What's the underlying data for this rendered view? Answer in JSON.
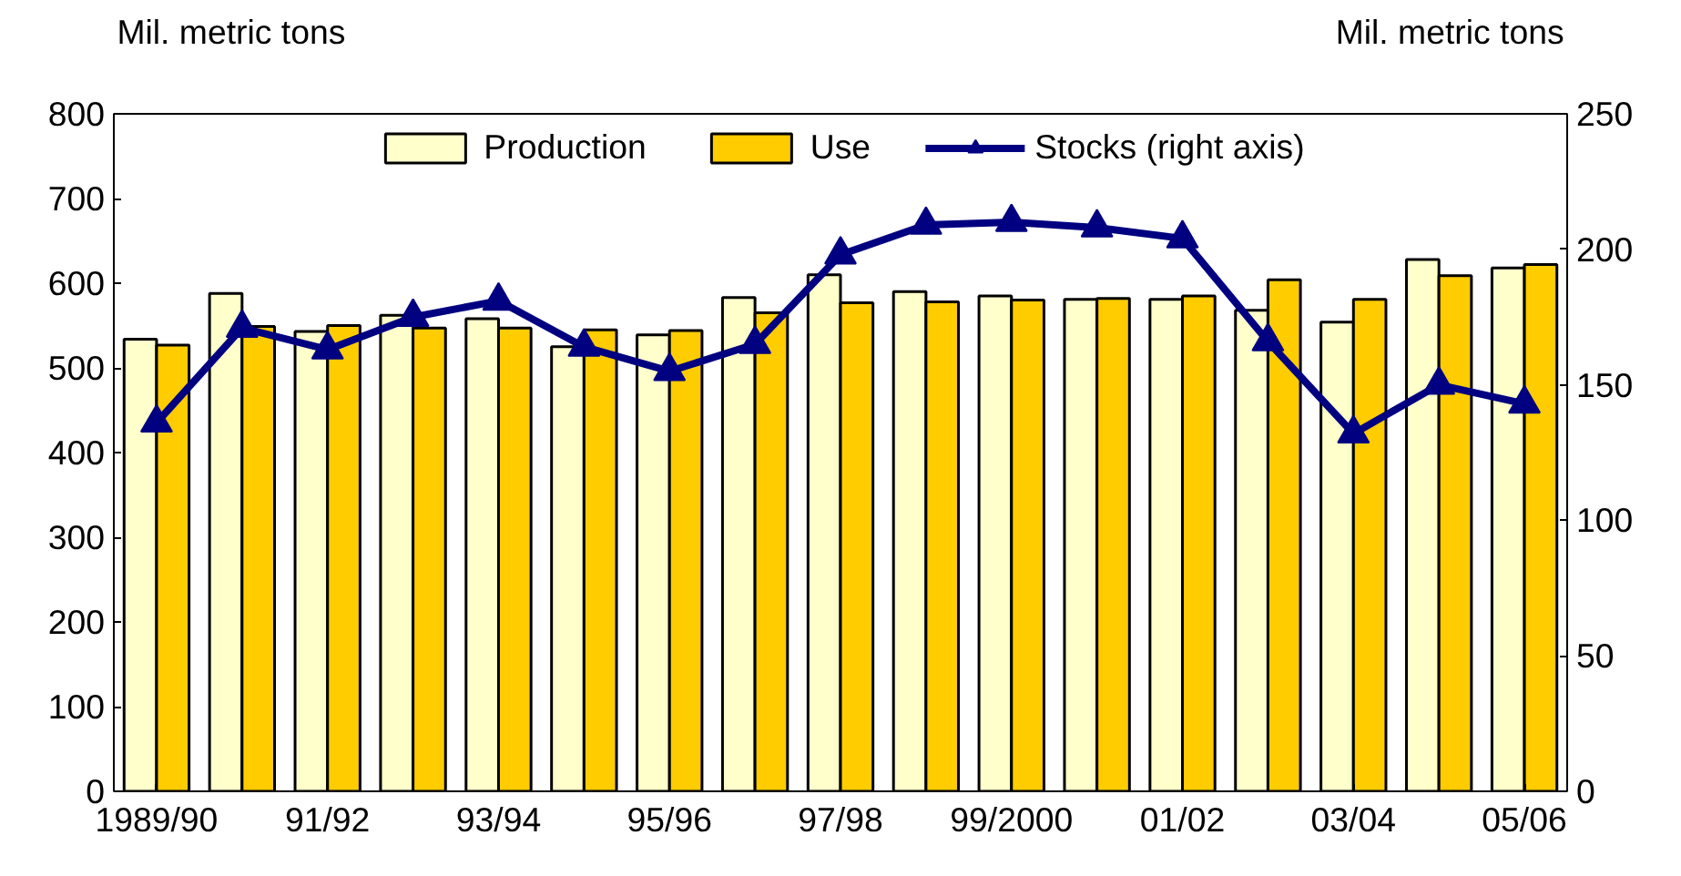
{
  "chart_data": {
    "type": "bar",
    "ylabel": "Mil. metric tons",
    "y2label": "Mil. metric tons",
    "categories": [
      "1989/90",
      null,
      "91/92",
      null,
      "93/94",
      null,
      "95/96",
      null,
      "97/98",
      null,
      "99/2000",
      null,
      "01/02",
      null,
      "03/04",
      null,
      "05/06"
    ],
    "series": [
      {
        "name": "Production",
        "color": "#ffffcc",
        "values": [
          534,
          588,
          543,
          562,
          558,
          525,
          539,
          583,
          610,
          590,
          585,
          581,
          581,
          568,
          554,
          628,
          618
        ]
      },
      {
        "name": "Use",
        "color": "#ffcc00",
        "values": [
          527,
          549,
          550,
          547,
          547,
          545,
          544,
          565,
          577,
          578,
          580,
          582,
          585,
          604,
          581,
          609,
          622
        ]
      },
      {
        "name": "Stocks (right axis)",
        "type": "line",
        "axis": "y2",
        "color": "#000080",
        "marker": "triangle",
        "values": [
          136,
          171,
          163,
          175,
          181,
          164,
          155,
          165,
          198,
          209,
          210,
          208,
          204,
          166,
          132,
          150,
          143
        ]
      }
    ],
    "ylim": [
      0,
      800
    ],
    "yticks": [
      0,
      100,
      200,
      300,
      400,
      500,
      600,
      700,
      800
    ],
    "y2lim": [
      0,
      250
    ],
    "y2ticks": [
      0,
      50,
      100,
      150,
      200,
      250
    ],
    "grid": false,
    "legend": "top"
  }
}
